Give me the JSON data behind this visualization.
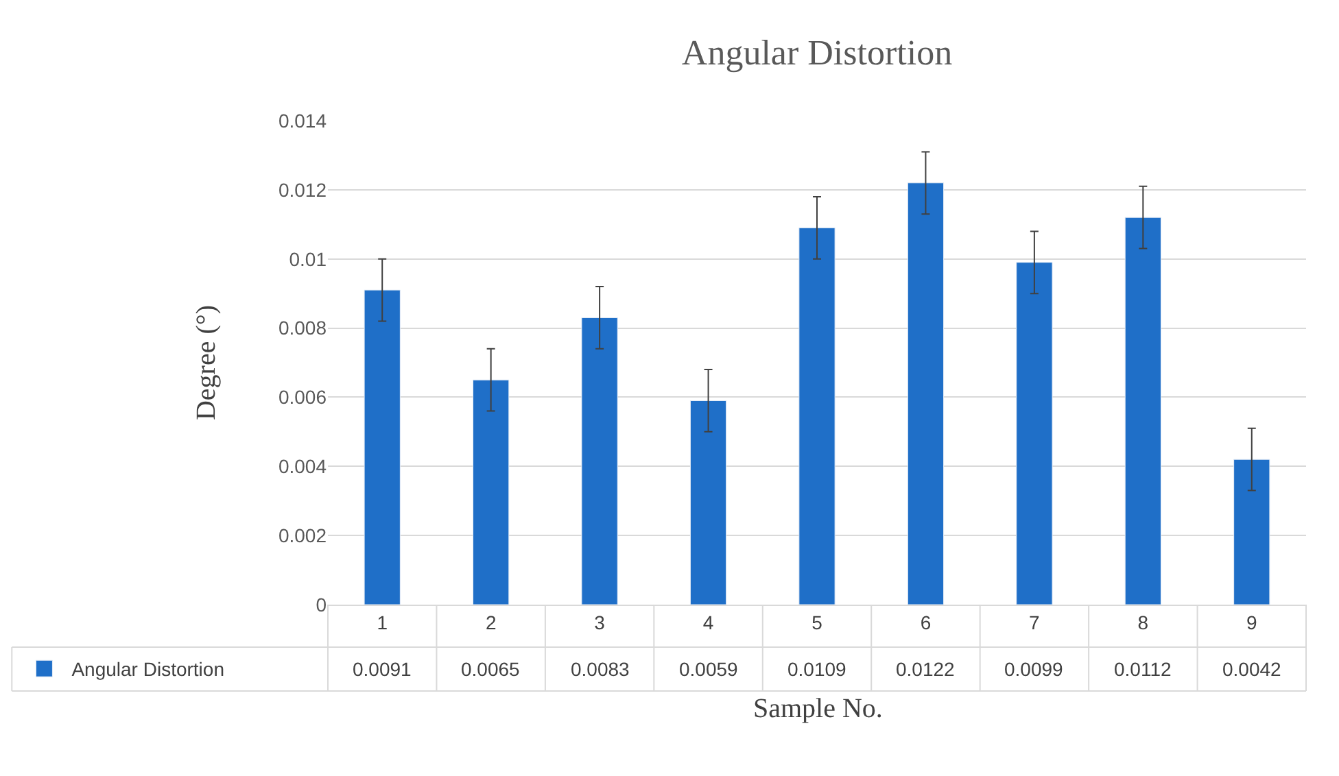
{
  "chart_data": {
    "type": "bar",
    "title": "Angular Distortion",
    "xlabel": "Sample No.",
    "ylabel": "Degree (°)",
    "categories": [
      "1",
      "2",
      "3",
      "4",
      "5",
      "6",
      "7",
      "8",
      "9"
    ],
    "series": [
      {
        "name": "Angular Distortion",
        "color": "#1f6fc8",
        "values": [
          0.0091,
          0.0065,
          0.0083,
          0.0059,
          0.0109,
          0.0122,
          0.0099,
          0.0112,
          0.0042
        ],
        "errors": [
          0.0009,
          0.0009,
          0.0009,
          0.0009,
          0.0009,
          0.0009,
          0.0009,
          0.0009,
          0.0009
        ]
      }
    ],
    "ylim": [
      0,
      0.014
    ],
    "yticks": [
      0,
      0.002,
      0.004,
      0.006,
      0.008,
      0.01,
      0.012,
      0.014
    ],
    "grid": "y",
    "data_labels": true,
    "legend": "bottom left"
  }
}
